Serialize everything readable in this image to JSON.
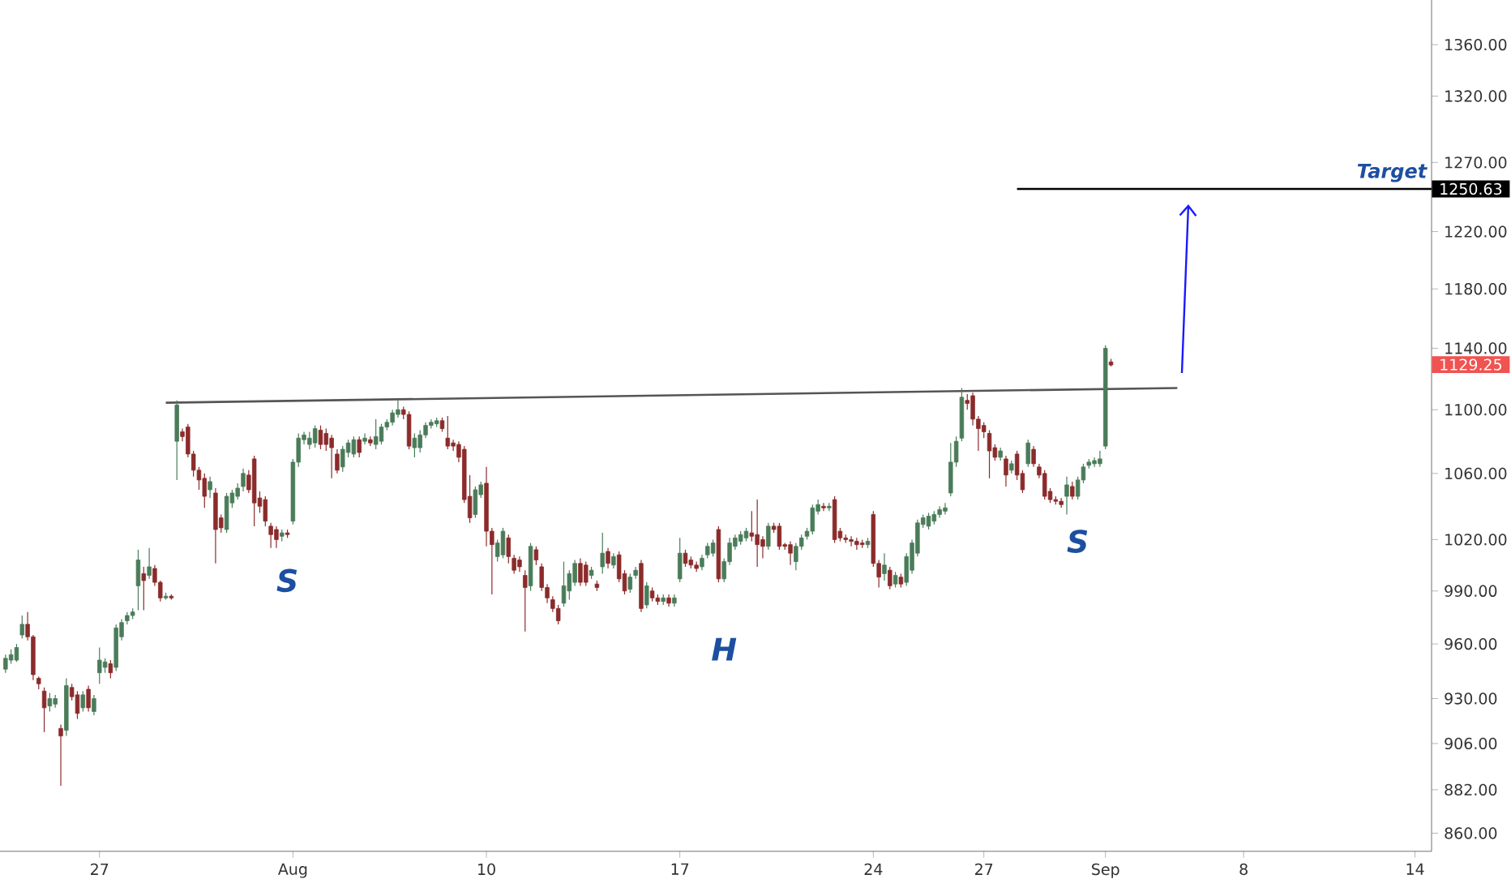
{
  "chart_data": {
    "type": "candlestick",
    "log": true,
    "ylim": [
      851,
      1396
    ],
    "yticks": [
      {
        "value": 860,
        "label": "860.00"
      },
      {
        "value": 882,
        "label": "882.00"
      },
      {
        "value": 906,
        "label": "906.00"
      },
      {
        "value": 930,
        "label": "930.00"
      },
      {
        "value": 960,
        "label": "960.00"
      },
      {
        "value": 990,
        "label": "990.00"
      },
      {
        "value": 1020,
        "label": "1020.00"
      },
      {
        "value": 1060,
        "label": "1060.00"
      },
      {
        "value": 1100,
        "label": "1100.00"
      },
      {
        "value": 1140,
        "label": "1140.00"
      },
      {
        "value": 1180,
        "label": "1180.00"
      },
      {
        "value": 1220,
        "label": "1220.00"
      },
      {
        "value": 1270,
        "label": "1270.00"
      },
      {
        "value": 1320,
        "label": "1320.00"
      },
      {
        "value": 1360,
        "label": "1360.00"
      }
    ],
    "categories": [
      null,
      null,
      null,
      null,
      null,
      null,
      null,
      null,
      null,
      null,
      null,
      null,
      null,
      null,
      null,
      null,
      null,
      "27",
      null,
      null,
      null,
      null,
      null,
      null,
      null,
      null,
      null,
      null,
      null,
      null,
      null,
      null,
      null,
      null,
      null,
      null,
      null,
      null,
      null,
      null,
      null,
      null,
      null,
      null,
      null,
      null,
      null,
      null,
      null,
      null,
      null,
      null,
      "Aug",
      null,
      null,
      null,
      null,
      null,
      null,
      null,
      null,
      null,
      null,
      null,
      null,
      null,
      null,
      null,
      null,
      null,
      null,
      null,
      null,
      null,
      null,
      null,
      null,
      null,
      null,
      null,
      null,
      null,
      null,
      null,
      null,
      null,
      null,
      "10",
      null,
      null,
      null,
      null,
      null,
      null,
      null,
      null,
      null,
      null,
      null,
      null,
      null,
      null,
      null,
      null,
      null,
      null,
      null,
      null,
      null,
      null,
      null,
      null,
      null,
      null,
      null,
      null,
      null,
      null,
      null,
      null,
      null,
      null,
      "17",
      null,
      null,
      null,
      null,
      null,
      null,
      null,
      null,
      null,
      null,
      null,
      null,
      null,
      null,
      null,
      null,
      null,
      null,
      null,
      null,
      null,
      null,
      null,
      null,
      null,
      null,
      null,
      null,
      null,
      null,
      null,
      null,
      null,
      null,
      "24",
      null,
      null,
      null,
      null,
      null,
      null,
      null,
      null,
      null,
      null,
      null,
      null,
      null,
      null,
      null,
      null,
      null,
      null,
      null,
      "27",
      null,
      null,
      null,
      null,
      null,
      null,
      null,
      null,
      null,
      null,
      null,
      null,
      null,
      null,
      null,
      null,
      null,
      null,
      null,
      null,
      null,
      "Sep",
      null,
      null,
      null,
      null,
      null,
      null,
      null,
      null,
      null,
      null,
      null,
      null,
      null,
      null,
      null,
      null,
      null,
      null,
      null,
      null,
      null,
      null,
      null,
      null,
      "8",
      null,
      null,
      null,
      null,
      null,
      null,
      null,
      null,
      null,
      null,
      null,
      null,
      null,
      null,
      null,
      null,
      null,
      null,
      null,
      null,
      null,
      null,
      null,
      null,
      null,
      null,
      null,
      null,
      null,
      null,
      "14",
      null,
      null,
      null
    ],
    "ohlc": [
      [
        946,
        954,
        944,
        952
      ],
      [
        951,
        957,
        949,
        954
      ],
      [
        951,
        960,
        950,
        958
      ],
      [
        965,
        976,
        963,
        971
      ],
      [
        971,
        978,
        962,
        964
      ],
      [
        964,
        965,
        940,
        943
      ],
      [
        941,
        942,
        935,
        938
      ],
      [
        934,
        936,
        912,
        925
      ],
      [
        926,
        933,
        923,
        930
      ],
      [
        927,
        932,
        925,
        930
      ],
      [
        914,
        916,
        884,
        910
      ],
      [
        913,
        941,
        910,
        937
      ],
      [
        936,
        938,
        929,
        931
      ],
      [
        932,
        934,
        919,
        922
      ],
      [
        925,
        934,
        923,
        932
      ],
      [
        935,
        937,
        923,
        925
      ],
      [
        923,
        932,
        921,
        930
      ],
      [
        944,
        958,
        938,
        951
      ],
      [
        947,
        952,
        944,
        950
      ],
      [
        949,
        951,
        941,
        944
      ],
      [
        947,
        971,
        945,
        969
      ],
      [
        964,
        974,
        962,
        972
      ],
      [
        973,
        978,
        971,
        976
      ],
      [
        976,
        980,
        974,
        978
      ],
      [
        993,
        1014,
        979,
        1008
      ],
      [
        1000,
        1004,
        979,
        996
      ],
      [
        999,
        1015,
        997,
        1004
      ],
      [
        1003,
        1005,
        993,
        995
      ],
      [
        995,
        996,
        984,
        986
      ],
      [
        986,
        989,
        985,
        987
      ],
      [
        987,
        988,
        985,
        986
      ],
      [
        1080,
        1106,
        1056,
        1103
      ],
      [
        1086,
        1088,
        1080,
        1083
      ],
      [
        1089,
        1091,
        1070,
        1072
      ],
      [
        1072,
        1074,
        1058,
        1062
      ],
      [
        1062,
        1064,
        1050,
        1056
      ],
      [
        1057,
        1060,
        1039,
        1046
      ],
      [
        1050,
        1058,
        1045,
        1055
      ],
      [
        1048,
        1051,
        1006,
        1026
      ],
      [
        1033,
        1035,
        1024,
        1027
      ],
      [
        1026,
        1048,
        1024,
        1046
      ],
      [
        1042,
        1050,
        1039,
        1048
      ],
      [
        1046,
        1054,
        1044,
        1051
      ],
      [
        1052,
        1063,
        1049,
        1060
      ],
      [
        1059,
        1062,
        1048,
        1050
      ],
      [
        1069,
        1071,
        1028,
        1042
      ],
      [
        1045,
        1049,
        1036,
        1040
      ],
      [
        1044,
        1046,
        1028,
        1031
      ],
      [
        1028,
        1030,
        1015,
        1023
      ],
      [
        1026,
        1028,
        1015,
        1020
      ],
      [
        1022,
        1026,
        1019,
        1024
      ],
      [
        1024,
        1026,
        1021,
        1023
      ],
      [
        1031,
        1069,
        1029,
        1067
      ],
      [
        1067,
        1085,
        1064,
        1082
      ],
      [
        1081,
        1086,
        1078,
        1084
      ],
      [
        1078,
        1086,
        1075,
        1082
      ],
      [
        1079,
        1090,
        1076,
        1088
      ],
      [
        1087,
        1090,
        1075,
        1078
      ],
      [
        1085,
        1088,
        1074,
        1078
      ],
      [
        1082,
        1084,
        1057,
        1076
      ],
      [
        1072,
        1075,
        1060,
        1062
      ],
      [
        1064,
        1077,
        1061,
        1075
      ],
      [
        1073,
        1081,
        1070,
        1079
      ],
      [
        1072,
        1083,
        1070,
        1081
      ],
      [
        1081,
        1083,
        1070,
        1073
      ],
      [
        1080,
        1085,
        1078,
        1082
      ],
      [
        1081,
        1083,
        1077,
        1079
      ],
      [
        1078,
        1094,
        1075,
        1083
      ],
      [
        1080,
        1091,
        1078,
        1089
      ],
      [
        1089,
        1094,
        1087,
        1092
      ],
      [
        1092,
        1100,
        1090,
        1098
      ],
      [
        1097,
        1106,
        1095,
        1100
      ],
      [
        1100,
        1102,
        1094,
        1097
      ],
      [
        1097,
        1099,
        1075,
        1077
      ],
      [
        1076,
        1085,
        1070,
        1082
      ],
      [
        1076,
        1087,
        1073,
        1084
      ],
      [
        1084,
        1092,
        1082,
        1090
      ],
      [
        1090,
        1094,
        1088,
        1092
      ],
      [
        1091,
        1095,
        1089,
        1093
      ],
      [
        1093,
        1095,
        1086,
        1088
      ],
      [
        1082,
        1096,
        1075,
        1077
      ],
      [
        1079,
        1081,
        1074,
        1077
      ],
      [
        1078,
        1080,
        1067,
        1070
      ],
      [
        1075,
        1077,
        1042,
        1044
      ],
      [
        1046,
        1059,
        1030,
        1033
      ],
      [
        1035,
        1052,
        1033,
        1050
      ],
      [
        1047,
        1055,
        1045,
        1053
      ],
      [
        1054,
        1064,
        1016,
        1025
      ],
      [
        1025,
        1027,
        988,
        1017
      ],
      [
        1010,
        1020,
        1007,
        1018
      ],
      [
        1011,
        1027,
        1009,
        1025
      ],
      [
        1021,
        1023,
        1006,
        1010
      ],
      [
        1009,
        1011,
        1000,
        1002
      ],
      [
        1008,
        1010,
        1001,
        1004
      ],
      [
        999,
        1002,
        967,
        992
      ],
      [
        993,
        1018,
        990,
        1016
      ],
      [
        1014,
        1016,
        1005,
        1008
      ],
      [
        1004,
        1006,
        990,
        992
      ],
      [
        992,
        994,
        983,
        986
      ],
      [
        985,
        987,
        978,
        980
      ],
      [
        980,
        982,
        971,
        973
      ],
      [
        983,
        1007,
        981,
        993
      ],
      [
        990,
        1002,
        985,
        1000
      ],
      [
        995,
        1008,
        993,
        1006
      ],
      [
        1006,
        1009,
        993,
        995
      ],
      [
        1005,
        1007,
        993,
        995
      ],
      [
        999,
        1004,
        997,
        1002
      ],
      [
        994,
        996,
        990,
        992
      ],
      [
        1004,
        1024,
        1000,
        1012
      ],
      [
        1013,
        1015,
        1003,
        1006
      ],
      [
        1005,
        1012,
        1003,
        1010
      ],
      [
        1011,
        1013,
        995,
        997
      ],
      [
        1000,
        1002,
        988,
        990
      ],
      [
        991,
        1000,
        989,
        998
      ],
      [
        999,
        1004,
        997,
        1002
      ],
      [
        1006,
        1008,
        978,
        980
      ],
      [
        982,
        995,
        980,
        993
      ],
      [
        990,
        992,
        984,
        986
      ],
      [
        986,
        988,
        982,
        984
      ],
      [
        984,
        988,
        982,
        986
      ],
      [
        986,
        988,
        981,
        983
      ],
      [
        983,
        988,
        981,
        986
      ],
      [
        997,
        1021,
        995,
        1012
      ],
      [
        1012,
        1014,
        1004,
        1006
      ],
      [
        1008,
        1010,
        1003,
        1005
      ],
      [
        1005,
        1007,
        1001,
        1003
      ],
      [
        1004,
        1011,
        1002,
        1009
      ],
      [
        1011,
        1018,
        1009,
        1016
      ],
      [
        1012,
        1020,
        1010,
        1018
      ],
      [
        1026,
        1028,
        995,
        997
      ],
      [
        997,
        1009,
        995,
        1007
      ],
      [
        1007,
        1021,
        1005,
        1018
      ],
      [
        1016,
        1023,
        1014,
        1021
      ],
      [
        1019,
        1025,
        1017,
        1023
      ],
      [
        1021,
        1027,
        1019,
        1025
      ],
      [
        1024,
        1037,
        1019,
        1022
      ],
      [
        1023,
        1044,
        1004,
        1017
      ],
      [
        1020,
        1022,
        1009,
        1016
      ],
      [
        1016,
        1030,
        1014,
        1028
      ],
      [
        1028,
        1030,
        1024,
        1026
      ],
      [
        1028,
        1030,
        1014,
        1016
      ],
      [
        1017,
        1018,
        1014,
        1016
      ],
      [
        1017,
        1019,
        1005,
        1012
      ],
      [
        1007,
        1018,
        1002,
        1016
      ],
      [
        1016,
        1023,
        1014,
        1021
      ],
      [
        1022,
        1027,
        1020,
        1025
      ],
      [
        1025,
        1041,
        1023,
        1039
      ],
      [
        1037,
        1044,
        1035,
        1041
      ],
      [
        1040,
        1042,
        1037,
        1039
      ],
      [
        1039,
        1042,
        1037,
        1040
      ],
      [
        1044,
        1046,
        1018,
        1020
      ],
      [
        1025,
        1027,
        1019,
        1021
      ],
      [
        1021,
        1023,
        1018,
        1020
      ],
      [
        1020,
        1022,
        1016,
        1019
      ],
      [
        1019,
        1021,
        1014,
        1017
      ],
      [
        1018,
        1020,
        1015,
        1017
      ],
      [
        1017,
        1021,
        1015,
        1019
      ],
      [
        1035,
        1037,
        1004,
        1006
      ],
      [
        1006,
        1008,
        992,
        998
      ],
      [
        1000,
        1012,
        996,
        1005
      ],
      [
        1002,
        1004,
        991,
        993
      ],
      [
        994,
        1001,
        992,
        999
      ],
      [
        998,
        1000,
        992,
        994
      ],
      [
        995,
        1012,
        993,
        1010
      ],
      [
        1002,
        1020,
        1000,
        1018
      ],
      [
        1012,
        1032,
        1010,
        1030
      ],
      [
        1029,
        1035,
        1027,
        1033
      ],
      [
        1028,
        1036,
        1026,
        1034
      ],
      [
        1031,
        1037,
        1029,
        1035
      ],
      [
        1035,
        1040,
        1033,
        1038
      ],
      [
        1037,
        1042,
        1035,
        1039
      ],
      [
        1048,
        1079,
        1046,
        1067
      ],
      [
        1067,
        1083,
        1064,
        1080
      ],
      [
        1082,
        1114,
        1080,
        1108
      ],
      [
        1106,
        1110,
        1100,
        1104
      ],
      [
        1109,
        1111,
        1090,
        1094
      ],
      [
        1094,
        1096,
        1074,
        1088
      ],
      [
        1090,
        1092,
        1082,
        1086
      ],
      [
        1085,
        1087,
        1057,
        1074
      ],
      [
        1076,
        1078,
        1068,
        1070
      ],
      [
        1070,
        1076,
        1068,
        1074
      ],
      [
        1069,
        1071,
        1052,
        1059
      ],
      [
        1062,
        1068,
        1060,
        1066
      ],
      [
        1072,
        1074,
        1056,
        1059
      ],
      [
        1060,
        1062,
        1048,
        1050
      ],
      [
        1066,
        1081,
        1064,
        1079
      ],
      [
        1075,
        1077,
        1064,
        1066
      ],
      [
        1064,
        1066,
        1057,
        1059
      ],
      [
        1060,
        1062,
        1044,
        1046
      ],
      [
        1049,
        1051,
        1042,
        1044
      ],
      [
        1044,
        1046,
        1041,
        1043
      ],
      [
        1043,
        1045,
        1039,
        1041
      ],
      [
        1046,
        1058,
        1035,
        1053
      ],
      [
        1052,
        1055,
        1044,
        1046
      ],
      [
        1046,
        1058,
        1044,
        1056
      ],
      [
        1056,
        1066,
        1054,
        1064
      ],
      [
        1065,
        1069,
        1063,
        1067
      ],
      [
        1066,
        1070,
        1064,
        1068
      ],
      [
        1066,
        1074,
        1064,
        1069
      ],
      [
        1077,
        1142,
        1075,
        1140
      ],
      [
        1131,
        1133,
        1128,
        1129
      ],
      null,
      null,
      null,
      null,
      null,
      null,
      null,
      null,
      null,
      null,
      null,
      null,
      null,
      null,
      null,
      null,
      null,
      null,
      null,
      null,
      null,
      null,
      null,
      null,
      null,
      null,
      null,
      null,
      null,
      null,
      null,
      null,
      null,
      null,
      null,
      null,
      null,
      null,
      null,
      null,
      null,
      null,
      null,
      null,
      null,
      null,
      null,
      null,
      null,
      null,
      null,
      null,
      null,
      null,
      null,
      null,
      null,
      null
    ],
    "series": [
      {
        "type": "line",
        "color": "#555555",
        "values": [
          null,
          null,
          null,
          null,
          null,
          null,
          null,
          null,
          null,
          null,
          null,
          null,
          null,
          null,
          null,
          null,
          null,
          null,
          null,
          null,
          null,
          null,
          null,
          null,
          null,
          null,
          null,
          null,
          null,
          1104.5,
          null,
          null,
          null,
          null,
          null,
          null,
          null,
          null,
          null,
          null,
          null,
          null,
          null,
          null,
          null,
          null,
          null,
          null,
          null,
          null,
          null,
          null,
          null,
          null,
          null,
          null,
          null,
          null,
          null,
          null,
          null,
          null,
          null,
          null,
          null,
          null,
          null,
          null,
          null,
          null,
          null,
          null,
          null,
          null,
          null,
          null,
          null,
          null,
          null,
          null,
          null,
          null,
          null,
          null,
          null,
          null,
          null,
          null,
          null,
          null,
          null,
          null,
          null,
          null,
          null,
          null,
          null,
          null,
          null,
          null,
          null,
          null,
          null,
          null,
          null,
          null,
          null,
          null,
          null,
          null,
          null,
          null,
          null,
          null,
          null,
          null,
          null,
          null,
          null,
          null,
          null,
          null,
          null,
          null,
          null,
          null,
          null,
          null,
          null,
          null,
          null,
          null,
          null,
          null,
          null,
          null,
          null,
          null,
          null,
          null,
          null,
          null,
          null,
          null,
          null,
          null,
          null,
          null,
          null,
          null,
          null,
          null,
          null,
          null,
          null,
          null,
          null,
          null,
          null,
          null,
          null,
          null,
          null,
          null,
          null,
          null,
          null,
          null,
          null,
          null,
          null,
          null,
          null,
          null,
          null,
          null,
          null,
          null,
          null,
          null,
          null,
          null,
          null,
          null,
          null,
          null,
          null,
          null,
          null,
          null,
          null,
          null,
          null,
          null,
          null,
          null,
          null,
          null,
          null,
          null,
          null,
          null,
          null,
          null,
          null,
          null,
          null,
          null,
          null,
          null,
          null,
          null,
          1114,
          null,
          null,
          null,
          null,
          null,
          null,
          null,
          null,
          null,
          null,
          null,
          null,
          null,
          null,
          null,
          null,
          null,
          null,
          null,
          null,
          null,
          null,
          null,
          null,
          null,
          null,
          null,
          null,
          null,
          null,
          null,
          null,
          null,
          null,
          null,
          null,
          null,
          null,
          null,
          null,
          null,
          null,
          null,
          null,
          null,
          null
        ]
      },
      {
        "type": "line",
        "color": "#000000",
        "values": [
          null,
          null,
          null,
          null,
          null,
          null,
          null,
          null,
          null,
          null,
          null,
          null,
          null,
          null,
          null,
          null,
          null,
          null,
          null,
          null,
          null,
          null,
          null,
          null,
          null,
          null,
          null,
          null,
          null,
          null,
          null,
          null,
          null,
          null,
          null,
          null,
          null,
          null,
          null,
          null,
          null,
          null,
          null,
          null,
          null,
          null,
          null,
          null,
          null,
          null,
          null,
          null,
          null,
          null,
          null,
          null,
          null,
          null,
          null,
          null,
          null,
          null,
          null,
          null,
          null,
          null,
          null,
          null,
          null,
          null,
          null,
          null,
          null,
          null,
          null,
          null,
          null,
          null,
          null,
          null,
          null,
          null,
          null,
          null,
          null,
          null,
          null,
          null,
          null,
          null,
          null,
          null,
          null,
          null,
          null,
          null,
          null,
          null,
          null,
          null,
          null,
          null,
          null,
          null,
          null,
          null,
          null,
          null,
          null,
          null,
          null,
          null,
          null,
          null,
          null,
          null,
          null,
          null,
          null,
          null,
          null,
          null,
          null,
          null,
          null,
          null,
          null,
          null,
          null,
          null,
          null,
          null,
          null,
          null,
          null,
          null,
          null,
          null,
          null,
          null,
          null,
          null,
          null,
          null,
          null,
          null,
          null,
          null,
          null,
          null,
          null,
          null,
          null,
          null,
          null,
          null,
          null,
          null,
          null,
          null,
          null,
          null,
          null,
          null,
          null,
          null,
          null,
          null,
          null,
          null,
          null,
          null,
          null,
          null,
          null,
          null,
          null,
          null,
          null,
          null,
          null,
          null,
          null,
          1250.63,
          null,
          null,
          null,
          null,
          null,
          null,
          null,
          null,
          null,
          null,
          null,
          null,
          null,
          null,
          null,
          null,
          null,
          null,
          null,
          null,
          null,
          null,
          null,
          null,
          null,
          null,
          null,
          null,
          null,
          null,
          null,
          null,
          null,
          null,
          null,
          null,
          null,
          null,
          null,
          null,
          null,
          null,
          null,
          null,
          null,
          null,
          null,
          null,
          null,
          null,
          null,
          null,
          null,
          null,
          null,
          null,
          null,
          null,
          null,
          null,
          null,
          null,
          null,
          null,
          null,
          null,
          null,
          null,
          null,
          null,
          null,
          null,
          null,
          null,
          1250.63
        ]
      }
    ],
    "annotations": [
      "S",
      "H",
      "S",
      "Target",
      "1129.25",
      "1250.63"
    ]
  }
}
